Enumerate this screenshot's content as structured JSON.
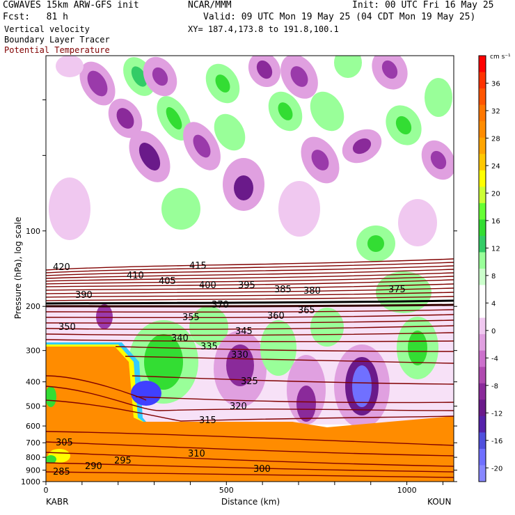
{
  "header": {
    "model": "CGWAVES 15km ARW-GFS init",
    "org": "NCAR/MMM",
    "init": "Init: 00 UTC Fri 16 May 25",
    "fcst": "Fcst:   81 h",
    "valid": "Valid: 09 UTC Mon 19 May 25 (04 CDT Mon 19 May 25)",
    "field1": "Vertical velocity",
    "xy": "XY= 187.4,173.8 to 191.8,100.1",
    "field2": "Boundary Layer Tracer",
    "field3": "Potential Temperature"
  },
  "chart_data": {
    "type": "heatmap",
    "title": "",
    "xlabel": "Distance (km)",
    "ylabel": "Pressure (hPa), log scale",
    "x_ticks": [
      "0",
      "500",
      "1000"
    ],
    "xlim": [
      0,
      1130
    ],
    "y_ticks": [
      "100",
      "200",
      "300",
      "400",
      "500",
      "600",
      "700",
      "800",
      "900",
      "1000"
    ],
    "ylim": [
      1000,
      20
    ],
    "endpoints": {
      "left": "KABR",
      "right": "KOUN"
    },
    "colorbar": {
      "units": "cm s⁻¹",
      "tick_labels": [
        "36",
        "32",
        "28",
        "24",
        "20",
        "16",
        "12",
        "8",
        "4",
        "0",
        "-4",
        "-8",
        "-12",
        "-16",
        "-20"
      ],
      "colors": [
        "#ff0000",
        "#ff3300",
        "#ff5500",
        "#ff7700",
        "#ff8c00",
        "#ffa500",
        "#ffc800",
        "#ffff00",
        "#ccff33",
        "#66ff33",
        "#33dd33",
        "#33cc66",
        "#99ff99",
        "#ccffcc",
        "#ffffff",
        "#ffffff",
        "#f0c8f0",
        "#e0a0e0",
        "#cc70cc",
        "#b04ab0",
        "#8a2a9a",
        "#6a1a8a",
        "#5522aa",
        "#5050dd",
        "#7070ff",
        "#8888ff"
      ]
    },
    "theta_contour_labels": [
      "420",
      "415",
      "410",
      "405",
      "400",
      "395",
      "390",
      "385",
      "380",
      "375",
      "370",
      "365",
      "360",
      "355",
      "350",
      "345",
      "340",
      "335",
      "330",
      "325",
      "320",
      "315",
      "310",
      "305",
      "300",
      "295",
      "290",
      "285"
    ],
    "colors": {
      "theta": "#800000",
      "boundary_layer": "#ff8c00"
    }
  }
}
